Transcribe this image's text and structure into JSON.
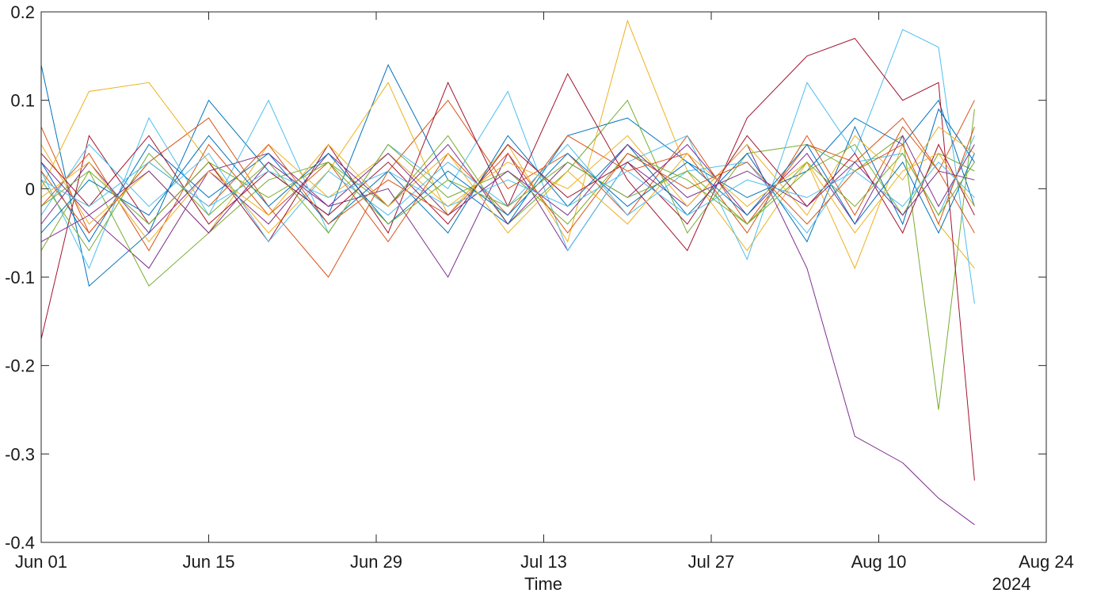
{
  "chart_data": {
    "type": "line",
    "title": "",
    "xlabel": "Time",
    "ylabel": "",
    "year_label": "2024",
    "x_unit": "date",
    "xlim": [
      "2024-06-01",
      "2024-08-24"
    ],
    "ylim": [
      -0.4,
      0.2
    ],
    "x_ticks": [
      {
        "date": "2024-06-01",
        "label": "Jun 01"
      },
      {
        "date": "2024-06-15",
        "label": "Jun 15"
      },
      {
        "date": "2024-06-29",
        "label": "Jun 29"
      },
      {
        "date": "2024-07-13",
        "label": "Jul 13"
      },
      {
        "date": "2024-07-27",
        "label": "Jul 27"
      },
      {
        "date": "2024-08-10",
        "label": "Aug 10"
      },
      {
        "date": "2024-08-24",
        "label": "Aug 24"
      }
    ],
    "y_ticks": [
      {
        "value": 0.2,
        "label": "0.2"
      },
      {
        "value": 0.1,
        "label": "0.1"
      },
      {
        "value": 0,
        "label": "0"
      },
      {
        "value": -0.1,
        "label": "-0.1"
      },
      {
        "value": -0.2,
        "label": "-0.2"
      },
      {
        "value": -0.3,
        "label": "-0.3"
      },
      {
        "value": -0.4,
        "label": "-0.4"
      }
    ],
    "grid": false,
    "legend": "none",
    "dates": [
      "2024-06-01",
      "2024-06-05",
      "2024-06-10",
      "2024-06-15",
      "2024-06-20",
      "2024-06-25",
      "2024-06-30",
      "2024-07-05",
      "2024-07-10",
      "2024-07-15",
      "2024-07-20",
      "2024-07-25",
      "2024-07-30",
      "2024-08-04",
      "2024-08-08",
      "2024-08-12",
      "2024-08-15",
      "2024-08-18"
    ],
    "series": [
      {
        "color": "#0072BD",
        "values": [
          0.14,
          -0.11,
          -0.05,
          0.1,
          0.02,
          -0.03,
          0.14,
          0.01,
          -0.04,
          0.06,
          0.08,
          0.03,
          -0.01,
          0.02,
          0.08,
          0.05,
          0.1,
          -0.02
        ]
      },
      {
        "color": "#D95319",
        "values": [
          0.07,
          -0.05,
          0.03,
          0.08,
          -0.02,
          -0.1,
          0.02,
          0.1,
          0.0,
          0.04,
          -0.03,
          0.06,
          -0.04,
          0.05,
          0.03,
          0.08,
          0.02,
          0.1
        ]
      },
      {
        "color": "#EDB120",
        "values": [
          0.0,
          0.11,
          0.12,
          0.03,
          -0.05,
          0.02,
          0.12,
          -0.03,
          0.05,
          -0.06,
          0.19,
          0.02,
          -0.07,
          0.03,
          -0.09,
          0.05,
          -0.04,
          -0.09
        ]
      },
      {
        "color": "#7E2F8E",
        "values": [
          -0.06,
          -0.03,
          -0.09,
          0.02,
          0.04,
          -0.02,
          0.0,
          -0.1,
          0.04,
          -0.07,
          0.03,
          -0.02,
          0.05,
          -0.09,
          -0.28,
          -0.31,
          -0.35,
          -0.38
        ]
      },
      {
        "color": "#77AC30",
        "values": [
          -0.07,
          0.02,
          -0.11,
          -0.05,
          0.01,
          0.03,
          -0.02,
          0.06,
          -0.04,
          0.02,
          0.1,
          -0.05,
          0.04,
          0.05,
          0.02,
          0.06,
          -0.25,
          0.09
        ]
      },
      {
        "color": "#4DBEEE",
        "values": [
          0.02,
          -0.09,
          0.08,
          -0.03,
          0.1,
          -0.05,
          0.05,
          0.0,
          0.11,
          -0.07,
          0.03,
          0.06,
          -0.08,
          0.12,
          0.04,
          0.18,
          0.16,
          -0.13
        ]
      },
      {
        "color": "#A2142F",
        "values": [
          -0.17,
          0.06,
          -0.04,
          0.03,
          -0.06,
          0.05,
          -0.05,
          0.12,
          -0.02,
          0.13,
          0.01,
          -0.07,
          0.08,
          0.15,
          0.17,
          0.1,
          0.12,
          -0.33
        ]
      },
      {
        "color": "#0072BD",
        "values": [
          0.03,
          -0.06,
          0.05,
          -0.01,
          0.04,
          -0.04,
          0.02,
          -0.05,
          0.06,
          -0.02,
          0.05,
          -0.03,
          0.04,
          -0.06,
          0.07,
          -0.04,
          0.09,
          0.03
        ]
      },
      {
        "color": "#D95319",
        "values": [
          -0.02,
          0.04,
          -0.07,
          0.05,
          -0.03,
          0.03,
          -0.06,
          0.04,
          -0.03,
          0.06,
          0.02,
          0.04,
          -0.05,
          0.06,
          -0.03,
          0.07,
          0.02,
          -0.05
        ]
      },
      {
        "color": "#EDB120",
        "values": [
          0.05,
          -0.04,
          0.02,
          -0.05,
          0.05,
          -0.01,
          0.04,
          -0.02,
          0.03,
          0.0,
          0.06,
          -0.02,
          0.05,
          -0.03,
          0.06,
          0.01,
          0.07,
          0.04
        ]
      },
      {
        "color": "#7E2F8E",
        "values": [
          -0.04,
          0.03,
          -0.05,
          0.02,
          -0.04,
          0.04,
          -0.02,
          0.05,
          -0.04,
          0.03,
          -0.01,
          0.05,
          -0.03,
          0.04,
          -0.04,
          0.06,
          -0.02,
          0.05
        ]
      },
      {
        "color": "#77AC30",
        "values": [
          0.01,
          -0.07,
          0.04,
          -0.03,
          0.03,
          -0.05,
          0.05,
          -0.01,
          0.02,
          -0.04,
          0.04,
          0.01,
          -0.04,
          0.02,
          0.05,
          -0.03,
          0.04,
          0.02
        ]
      },
      {
        "color": "#4DBEEE",
        "values": [
          -0.03,
          0.05,
          -0.02,
          0.04,
          -0.06,
          0.02,
          -0.03,
          0.03,
          -0.02,
          0.05,
          -0.03,
          0.02,
          0.03,
          -0.05,
          0.03,
          0.04,
          -0.03,
          0.06
        ]
      },
      {
        "color": "#A2142F",
        "values": [
          0.04,
          -0.02,
          0.06,
          -0.04,
          0.02,
          -0.03,
          0.03,
          -0.04,
          0.05,
          -0.01,
          0.03,
          -0.04,
          0.06,
          -0.02,
          0.04,
          -0.05,
          0.05,
          -0.03
        ]
      },
      {
        "color": "#0072BD",
        "values": [
          -0.05,
          0.01,
          -0.03,
          0.06,
          -0.02,
          0.04,
          -0.04,
          0.02,
          -0.03,
          0.04,
          -0.02,
          0.03,
          -0.03,
          0.05,
          -0.04,
          0.03,
          -0.05,
          0.04
        ]
      },
      {
        "color": "#D95319",
        "values": [
          0.02,
          -0.05,
          0.03,
          -0.02,
          0.05,
          -0.04,
          0.01,
          -0.03,
          0.04,
          -0.05,
          0.04,
          0.0,
          0.03,
          -0.04,
          0.02,
          0.05,
          -0.04,
          0.07
        ]
      },
      {
        "color": "#EDB120",
        "values": [
          -0.01,
          0.03,
          -0.06,
          0.02,
          -0.03,
          0.05,
          -0.02,
          0.04,
          -0.05,
          0.02,
          -0.04,
          0.04,
          -0.02,
          0.03,
          -0.05,
          0.02,
          0.04,
          -0.02
        ]
      },
      {
        "color": "#7E2F8E",
        "values": [
          0.03,
          -0.03,
          0.02,
          -0.05,
          0.03,
          -0.02,
          0.04,
          -0.03,
          0.02,
          -0.03,
          0.05,
          -0.01,
          0.02,
          -0.02,
          0.03,
          -0.03,
          0.02,
          0.01
        ]
      },
      {
        "color": "#77AC30",
        "values": [
          -0.02,
          0.02,
          -0.04,
          0.03,
          -0.01,
          0.03,
          -0.04,
          0.01,
          -0.02,
          0.03,
          -0.01,
          0.02,
          -0.04,
          0.03,
          -0.02,
          0.04,
          -0.03,
          0.03
        ]
      },
      {
        "color": "#4DBEEE",
        "values": [
          0.01,
          -0.02,
          0.03,
          -0.02,
          0.02,
          -0.01,
          0.02,
          -0.02,
          0.01,
          -0.02,
          0.02,
          -0.03,
          0.01,
          -0.01,
          0.02,
          -0.02,
          0.03,
          -0.01
        ]
      }
    ]
  }
}
